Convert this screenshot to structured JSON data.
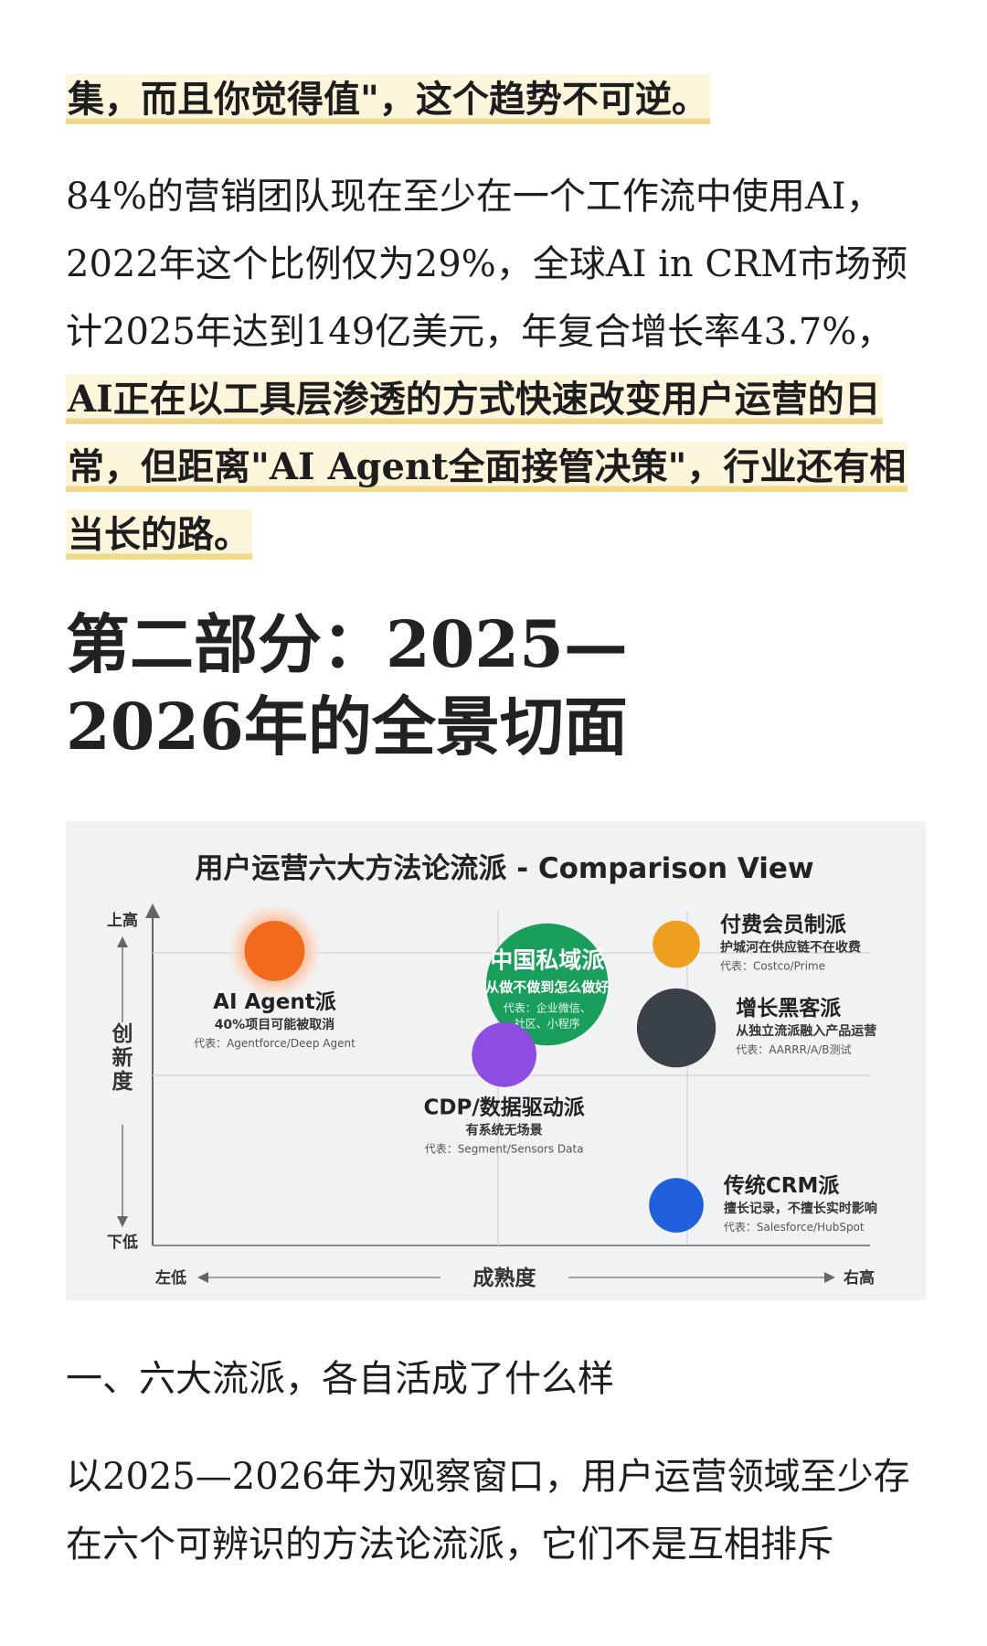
{
  "article": {
    "para1": "集，而且你觉得值\"，这个趋势不可逆。",
    "para2_plain": "84%的营销团队现在至少在一个工作流中使用AI，2022年这个比例仅为29%，全球AI in CRM市场预计2025年达到149亿美元，年复合增长率43.7%，",
    "para2_highlight": "AI正在以工具层渗透的方式快速改变用户运营的日常，但距离\"AI Agent全面接管决策\"，行业还有相当长的路。",
    "section_title_line1": "第二部分：2025—",
    "section_title_line2": "2026年的全景切面",
    "subhead": "一、六大流派，各自活成了什么样",
    "para3": "以2025—2026年为观察窗口，用户运营领域至少存在六个可辨识的方法论流派，它们不是互相排斥"
  },
  "chart_data": {
    "type": "scatter",
    "title": "用户运营六大方法论流派 - Comparison View",
    "xlabel": "成熟度",
    "ylabel": "创新度",
    "x_low": "左低",
    "x_high": "右高",
    "y_high": "上高",
    "y_low": "下低",
    "xlim": [
      0,
      10
    ],
    "ylim": [
      0,
      10
    ],
    "grid": true,
    "points": [
      {
        "name": "AI Agent派",
        "desc": "40%项目可能被取消",
        "rep": "代表：Agentforce/Deep Agent",
        "x": 1.7,
        "y": 8.8,
        "r": 0.42,
        "color": "#f26a1b",
        "glow": true,
        "label_pos": "below"
      },
      {
        "name": "中国私域派",
        "desc": "从做不做到怎么做好",
        "rep": "代表：企业微信、社区、小程序",
        "rep_lines": [
          "代表：企业微信、",
          "社区、小程序"
        ],
        "x": 5.5,
        "y": 7.8,
        "r": 0.85,
        "color": "#1a9e5c",
        "label_pos": "inside"
      },
      {
        "name": "付费会员制派",
        "desc": "护城河在供应链不在收费",
        "rep": "代表：Costco/Prime",
        "x": 7.3,
        "y": 9.0,
        "r": 0.33,
        "color": "#f0a020",
        "label_pos": "right"
      },
      {
        "name": "增长黑客派",
        "desc": "从独立流派融入产品运营",
        "rep": "代表：AARRR/A/B测试",
        "x": 7.3,
        "y": 6.5,
        "r": 0.55,
        "color": "#3b4148",
        "label_pos": "right"
      },
      {
        "name": "CDP/数据驱动派",
        "desc": "有系统无场景",
        "rep": "代表：Segment/Sensors Data",
        "x": 4.9,
        "y": 5.7,
        "r": 0.45,
        "color": "#8e4de0",
        "label_pos": "below"
      },
      {
        "name": "传统CRM派",
        "desc": "擅长记录，不擅长实时影响",
        "rep": "代表：Salesforce/HubSpot",
        "x": 7.3,
        "y": 1.2,
        "r": 0.38,
        "color": "#2060dd",
        "label_pos": "right"
      }
    ]
  }
}
